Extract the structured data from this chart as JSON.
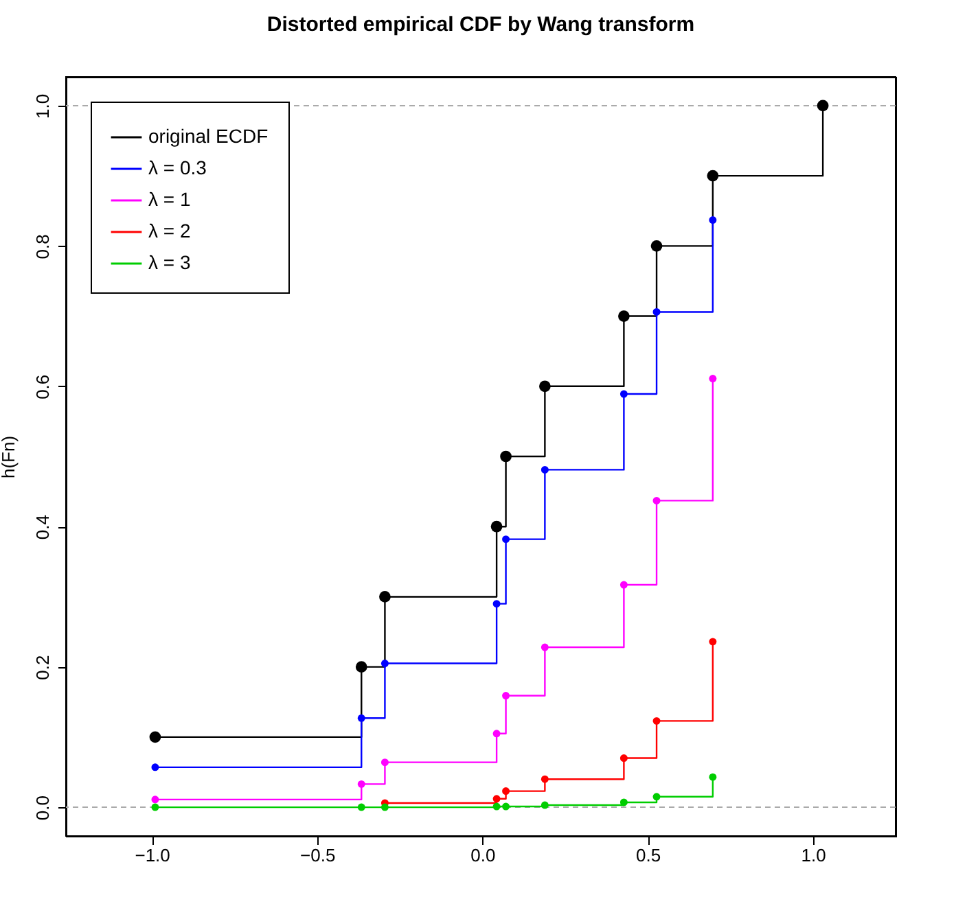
{
  "chart_data": {
    "type": "step",
    "title": "Distorted empirical CDF by Wang transform",
    "ylabel": "h(Fn)",
    "x": [
      -0.99,
      -0.366,
      -0.295,
      0.043,
      0.071,
      0.189,
      0.428,
      0.527,
      0.697,
      1.03
    ],
    "series": [
      {
        "name": "original ECDF",
        "color": "#000000",
        "values": [
          0.1,
          0.2,
          0.3,
          0.4,
          0.5,
          0.6,
          0.7,
          0.8,
          0.9,
          1.0
        ]
      },
      {
        "name": "λ = 0.3",
        "color": "#0000ff",
        "values": [
          0.057,
          0.127,
          0.205,
          0.29,
          0.382,
          0.481,
          0.589,
          0.706,
          0.837,
          null
        ]
      },
      {
        "name": "λ = 1",
        "color": "#ff00ff",
        "values": [
          0.011,
          0.033,
          0.064,
          0.105,
          0.159,
          0.228,
          0.317,
          0.437,
          0.611,
          null
        ]
      },
      {
        "name": "λ = 2",
        "color": "#ff0000",
        "values": [
          null,
          null,
          0.006,
          0.012,
          0.023,
          0.04,
          0.07,
          0.123,
          0.236,
          null
        ]
      },
      {
        "name": "λ = 3",
        "color": "#00cd00",
        "values": [
          0.0,
          0.0,
          0.0,
          0.001,
          0.001,
          0.003,
          0.007,
          0.015,
          0.043,
          null
        ]
      }
    ],
    "xlim": [
      -1.26,
      1.25
    ],
    "ylim": [
      -0.041,
      1.041
    ],
    "xticks": [
      {
        "value": -1,
        "label": "−1.0"
      },
      {
        "value": -0.5,
        "label": "−0.5"
      },
      {
        "value": 0,
        "label": "0.0"
      },
      {
        "value": 0.5,
        "label": "0.5"
      },
      {
        "value": 1,
        "label": "1.0"
      }
    ],
    "yticks": [
      {
        "value": 0,
        "label": "0.0"
      },
      {
        "value": 0.2,
        "label": "0.2"
      },
      {
        "value": 0.4,
        "label": "0.4"
      },
      {
        "value": 0.6,
        "label": "0.6"
      },
      {
        "value": 0.8,
        "label": "0.8"
      },
      {
        "value": 1,
        "label": "1.0"
      }
    ],
    "ref_lines": [
      {
        "axis": "y",
        "value": 0,
        "color": "#aaaaaa",
        "line_style": "dashed"
      },
      {
        "axis": "y",
        "value": 1,
        "color": "#aaaaaa",
        "line_style": "dashed"
      }
    ],
    "legend": "top left",
    "marker": "circle",
    "grid": false
  }
}
